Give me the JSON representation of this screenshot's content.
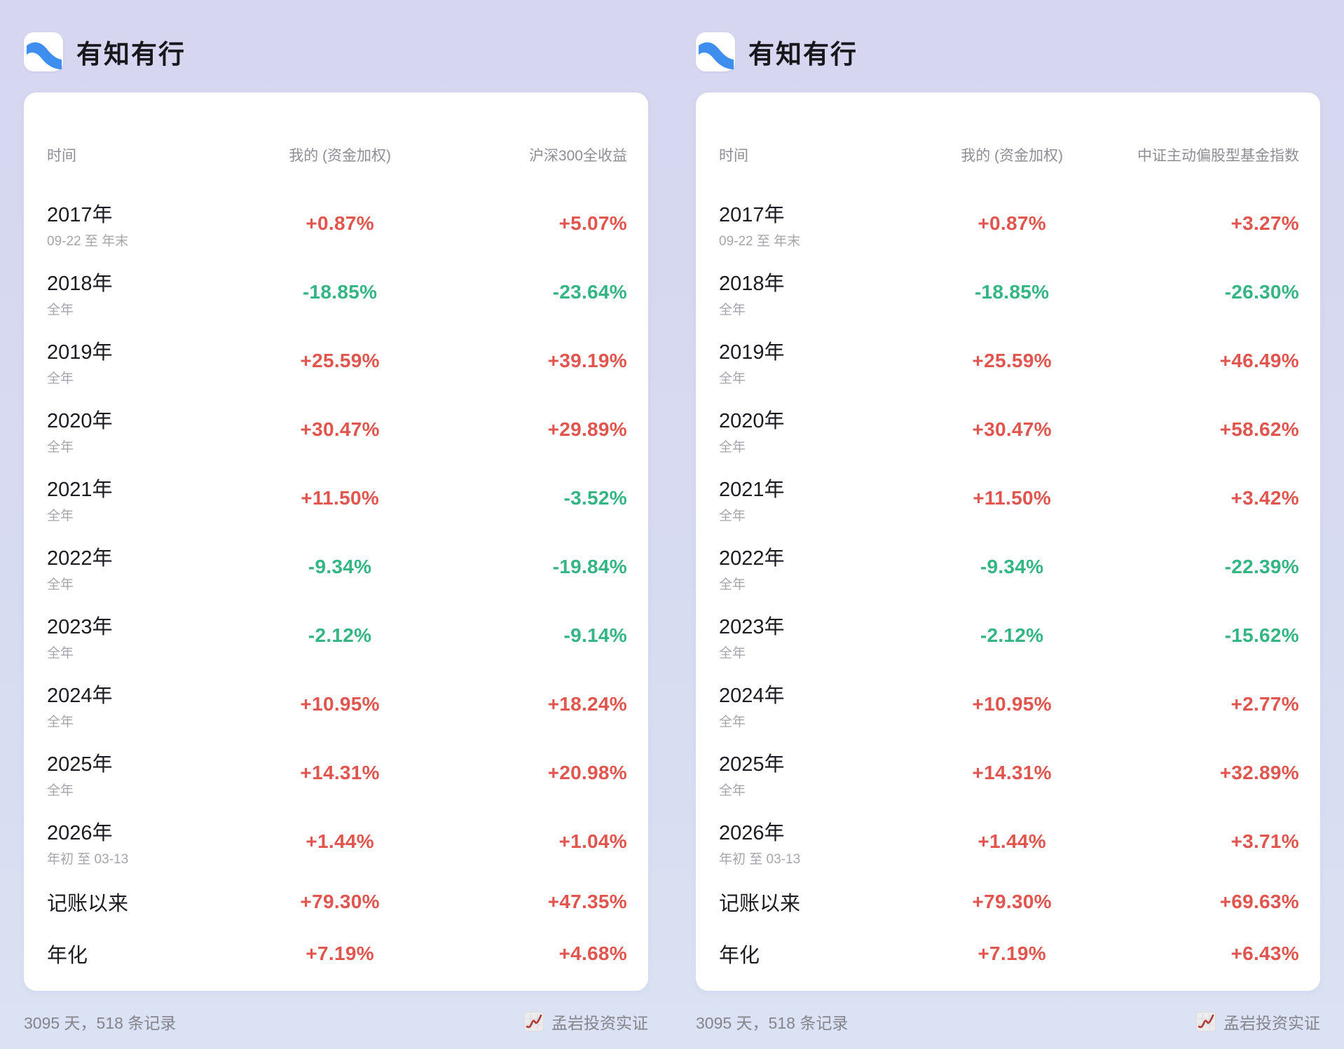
{
  "colors": {
    "positive": "#E0564F",
    "negative": "#35B584",
    "logo_blue": "#3E8EEF",
    "badge_red": "#B23A33",
    "background_top": "#D6D6F0",
    "background_bottom": "#DAE2F3",
    "card": "#FFFFFF"
  },
  "icons": {
    "brand_logo": "river-swoosh-icon",
    "verification_badge": "line-chart-icon"
  },
  "panels": [
    {
      "brand_name": "有知有行",
      "columns": [
        "时间",
        "我的 (资金加权)",
        "沪深300全收益"
      ],
      "rows": [
        {
          "period": "2017年",
          "range": "09-22 至 年末",
          "mine": "+0.87%",
          "benchmark": "+5.07%"
        },
        {
          "period": "2018年",
          "range": "全年",
          "mine": "-18.85%",
          "benchmark": "-23.64%"
        },
        {
          "period": "2019年",
          "range": "全年",
          "mine": "+25.59%",
          "benchmark": "+39.19%"
        },
        {
          "period": "2020年",
          "range": "全年",
          "mine": "+30.47%",
          "benchmark": "+29.89%"
        },
        {
          "period": "2021年",
          "range": "全年",
          "mine": "+11.50%",
          "benchmark": "-3.52%"
        },
        {
          "period": "2022年",
          "range": "全年",
          "mine": "-9.34%",
          "benchmark": "-19.84%"
        },
        {
          "period": "2023年",
          "range": "全年",
          "mine": "-2.12%",
          "benchmark": "-9.14%"
        },
        {
          "period": "2024年",
          "range": "全年",
          "mine": "+10.95%",
          "benchmark": "+18.24%"
        },
        {
          "period": "2025年",
          "range": "全年",
          "mine": "+14.31%",
          "benchmark": "+20.98%"
        },
        {
          "period": "2026年",
          "range": "年初 至 03-13",
          "mine": "+1.44%",
          "benchmark": "+1.04%"
        },
        {
          "period": "记账以来",
          "range": null,
          "mine": "+79.30%",
          "benchmark": "+47.35%"
        },
        {
          "period": "年化",
          "range": null,
          "mine": "+7.19%",
          "benchmark": "+4.68%"
        }
      ],
      "footer": {
        "stats": "3095 天，518 条记录",
        "verification": "孟岩投资实证"
      }
    },
    {
      "brand_name": "有知有行",
      "columns": [
        "时间",
        "我的 (资金加权)",
        "中证主动偏股型基金指数"
      ],
      "rows": [
        {
          "period": "2017年",
          "range": "09-22 至 年末",
          "mine": "+0.87%",
          "benchmark": "+3.27%"
        },
        {
          "period": "2018年",
          "range": "全年",
          "mine": "-18.85%",
          "benchmark": "-26.30%"
        },
        {
          "period": "2019年",
          "range": "全年",
          "mine": "+25.59%",
          "benchmark": "+46.49%"
        },
        {
          "period": "2020年",
          "range": "全年",
          "mine": "+30.47%",
          "benchmark": "+58.62%"
        },
        {
          "period": "2021年",
          "range": "全年",
          "mine": "+11.50%",
          "benchmark": "+3.42%"
        },
        {
          "period": "2022年",
          "range": "全年",
          "mine": "-9.34%",
          "benchmark": "-22.39%"
        },
        {
          "period": "2023年",
          "range": "全年",
          "mine": "-2.12%",
          "benchmark": "-15.62%"
        },
        {
          "period": "2024年",
          "range": "全年",
          "mine": "+10.95%",
          "benchmark": "+2.77%"
        },
        {
          "period": "2025年",
          "range": "全年",
          "mine": "+14.31%",
          "benchmark": "+32.89%"
        },
        {
          "period": "2026年",
          "range": "年初 至 03-13",
          "mine": "+1.44%",
          "benchmark": "+3.71%"
        },
        {
          "period": "记账以来",
          "range": null,
          "mine": "+79.30%",
          "benchmark": "+69.63%"
        },
        {
          "period": "年化",
          "range": null,
          "mine": "+7.19%",
          "benchmark": "+6.43%"
        }
      ],
      "footer": {
        "stats": "3095 天，518 条记录",
        "verification": "孟岩投资实证"
      }
    }
  ]
}
